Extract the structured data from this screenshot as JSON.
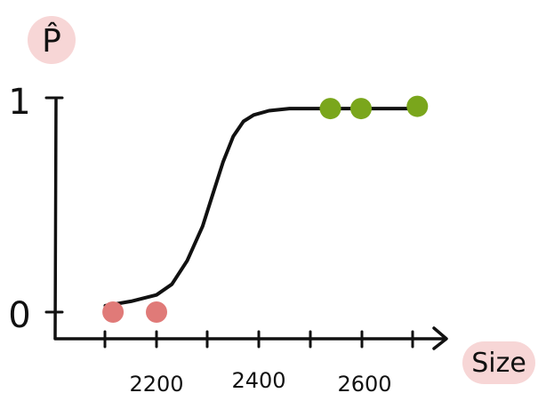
{
  "chart_data": {
    "type": "scatter",
    "ylabel": "P̂",
    "xlabel": "Size",
    "x_tick_labels": [
      "2200",
      "2400",
      "2600"
    ],
    "y_tick_labels": [
      "0",
      "1"
    ],
    "xlim": [
      2050,
      2760
    ],
    "ylim": [
      -0.15,
      1.05
    ],
    "grid": false,
    "label_bg_color": "#f7d6d6",
    "curve_color": "#111111",
    "series": [
      {
        "class": 0,
        "color": "#e07a78",
        "points": [
          {
            "x": 2115,
            "y": 0.0
          },
          {
            "x": 2200,
            "y": 0.0
          }
        ]
      },
      {
        "class": 1,
        "color": "#7aa61c",
        "points": [
          {
            "x": 2540,
            "y": 0.95
          },
          {
            "x": 2600,
            "y": 0.95
          },
          {
            "x": 2710,
            "y": 0.96
          }
        ]
      }
    ],
    "curve": {
      "x": [
        2100,
        2150,
        2200,
        2230,
        2260,
        2290,
        2310,
        2330,
        2350,
        2370,
        2390,
        2420,
        2460,
        2520,
        2600,
        2700
      ],
      "y": [
        0.03,
        0.05,
        0.08,
        0.13,
        0.24,
        0.4,
        0.55,
        0.7,
        0.82,
        0.89,
        0.92,
        0.94,
        0.95,
        0.95,
        0.95,
        0.95
      ]
    }
  }
}
